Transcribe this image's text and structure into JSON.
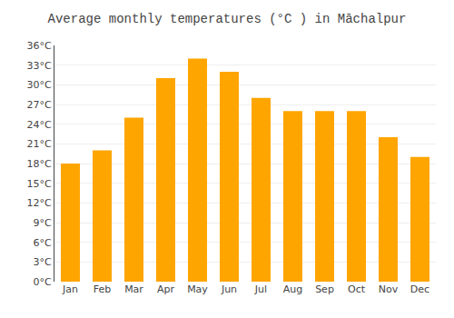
{
  "chart_data": {
    "type": "bar",
    "title": "Average monthly temperatures (°C ) in Māchalpur",
    "categories": [
      "Jan",
      "Feb",
      "Mar",
      "Apr",
      "May",
      "Jun",
      "Jul",
      "Aug",
      "Sep",
      "Oct",
      "Nov",
      "Dec"
    ],
    "values": [
      18,
      20,
      25,
      31,
      34,
      32,
      28,
      26,
      26,
      26,
      22,
      19
    ],
    "color": "#FFA500",
    "ylim": [
      0,
      36
    ],
    "yticks": [
      {
        "value": 0,
        "label": "0°C"
      },
      {
        "value": 3,
        "label": "3°C"
      },
      {
        "value": 6,
        "label": "6°C"
      },
      {
        "value": 9,
        "label": "9°C"
      },
      {
        "value": 12,
        "label": "12°C"
      },
      {
        "value": 15,
        "label": "15°C"
      },
      {
        "value": 18,
        "label": "18°C"
      },
      {
        "value": 21,
        "label": "21°C"
      },
      {
        "value": 24,
        "label": "24°C"
      },
      {
        "value": 27,
        "label": "27°C"
      },
      {
        "value": 30,
        "label": "30°C"
      },
      {
        "value": 33,
        "label": "33°C"
      },
      {
        "value": 36,
        "label": "36°C"
      }
    ],
    "grid": true
  }
}
